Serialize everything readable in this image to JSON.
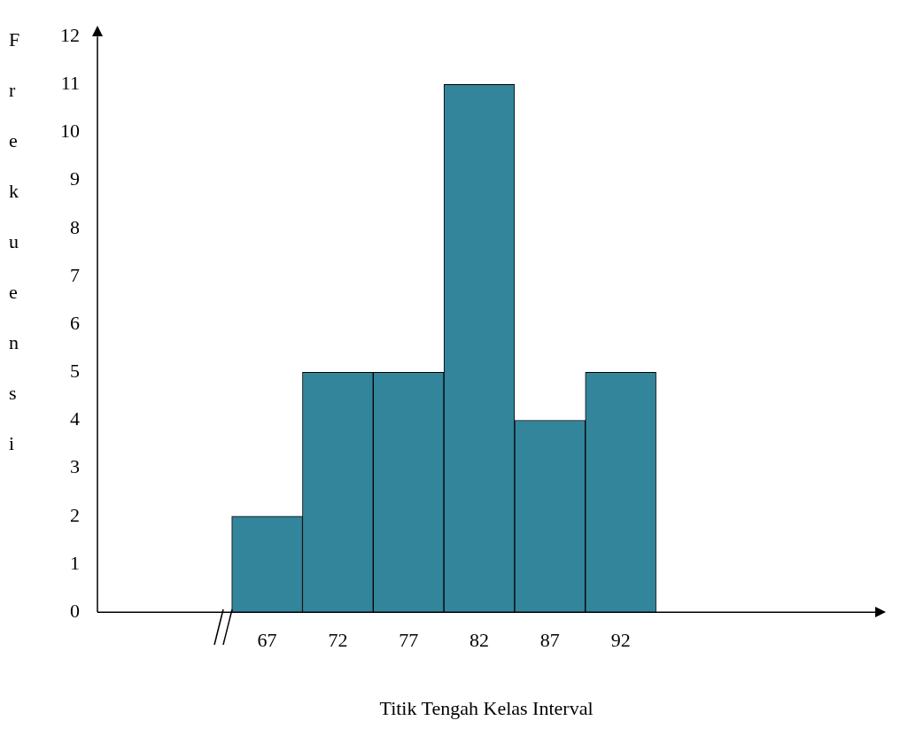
{
  "chart_data": {
    "type": "histogram",
    "xlabel": "Titik Tengah Kelas Interval",
    "ylabel": "Frekuensi",
    "bins": [
      64.5,
      69.5,
      74.5,
      79.5,
      84.5,
      89.5,
      94.5
    ],
    "values": [
      2,
      5,
      5,
      11,
      4,
      5
    ],
    "color": "#33859c",
    "xlim": [
      55,
      110
    ],
    "xticks": [
      67,
      72,
      77,
      82,
      87,
      92
    ],
    "ylim": [
      0,
      12
    ],
    "yticks": [
      0,
      1,
      2,
      3,
      4,
      5,
      6,
      7,
      8,
      9,
      10,
      11,
      12
    ],
    "grid": false,
    "legend": false
  }
}
